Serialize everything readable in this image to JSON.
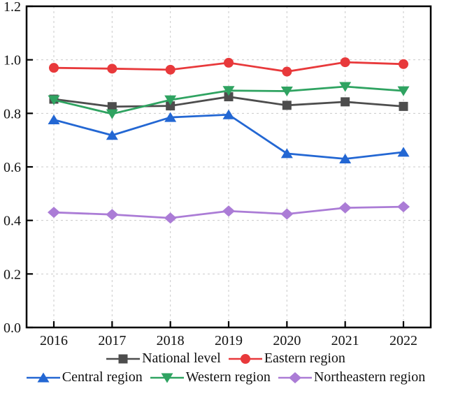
{
  "chart_data": {
    "type": "line",
    "title": "",
    "xlabel": "",
    "ylabel": "",
    "x": [
      "2016",
      "2017",
      "2018",
      "2019",
      "2020",
      "2021",
      "2022"
    ],
    "series": [
      {
        "name": "National level",
        "color": "#4d4d4d",
        "marker": "square",
        "values": [
          0.853,
          0.825,
          0.828,
          0.862,
          0.83,
          0.843,
          0.826
        ]
      },
      {
        "name": "Eastern region",
        "color": "#e8393b",
        "marker": "circle",
        "values": [
          0.97,
          0.967,
          0.963,
          0.989,
          0.956,
          0.991,
          0.984
        ]
      },
      {
        "name": "Central region",
        "color": "#2367d3",
        "marker": "triangle-up",
        "values": [
          0.776,
          0.718,
          0.785,
          0.795,
          0.65,
          0.63,
          0.655
        ]
      },
      {
        "name": "Western region",
        "color": "#2fa361",
        "marker": "triangle-down",
        "values": [
          0.85,
          0.798,
          0.85,
          0.885,
          0.883,
          0.9,
          0.884
        ]
      },
      {
        "name": "Northeastern region",
        "color": "#ab7cd6",
        "marker": "diamond",
        "values": [
          0.43,
          0.422,
          0.409,
          0.435,
          0.424,
          0.447,
          0.451
        ]
      }
    ],
    "ylim": [
      0.0,
      1.2
    ],
    "yticks": [
      0.0,
      0.2,
      0.4,
      0.6,
      0.8,
      1.0,
      1.2
    ],
    "ytick_labels": [
      "0.0",
      "0.2",
      "0.4",
      "0.6",
      "0.8",
      "1.0",
      "1.2"
    ],
    "grid": true,
    "grid_style": "dashed",
    "grid_color": "#c9c9c9",
    "frame_color": "#000000",
    "legend_position": "bottom"
  }
}
